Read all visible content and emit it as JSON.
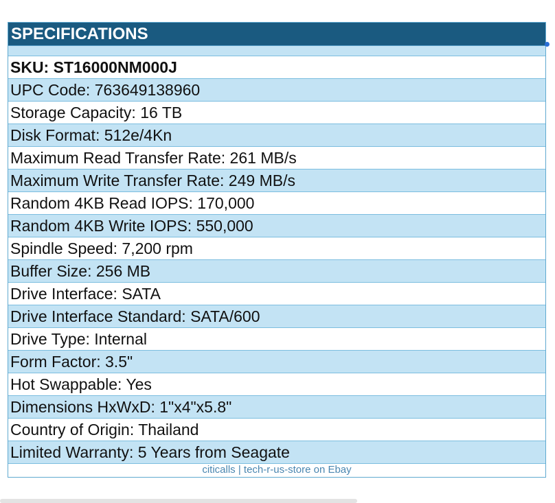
{
  "header": {
    "title": "SPECIFICATIONS"
  },
  "specs": [
    "SKU: ST16000NM000J",
    "UPC Code: 763649138960",
    "Storage Capacity: 16 TB",
    "Disk Format: 512e/4Kn",
    "Maximum Read Transfer Rate: 261 MB/s",
    "Maximum Write Transfer Rate: 249 MB/s",
    "Random 4KB Read IOPS: 170,000",
    "Random 4KB Write IOPS: 550,000",
    "Spindle Speed: 7,200 rpm",
    "Buffer Size: 256 MB",
    "Drive Interface: SATA",
    "Drive Interface Standard: SATA/600",
    "Drive Type: Internal",
    "Form Factor: 3.5\"",
    "Hot Swappable: Yes",
    "Dimensions HxWxD: 1\"x4\"x5.8\"",
    "Country of Origin: Thailand",
    "Limited Warranty: 5 Years from Seagate"
  ],
  "footer": {
    "text": "citicalls | tech-r-us-store on Ebay"
  }
}
